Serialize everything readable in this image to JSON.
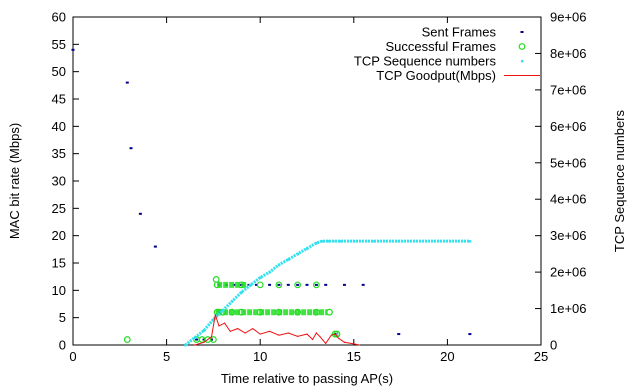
{
  "chart_data": {
    "type": "scatter",
    "xlabel": "Time relative to passing AP(s)",
    "ylabel": "MAC bit rate (Mbps)",
    "y2label": "TCP Sequence numbers",
    "xlim": [
      0,
      25
    ],
    "ylim": [
      0,
      60
    ],
    "y2lim": [
      0,
      9000000
    ],
    "xticks": [
      "0",
      "5",
      "10",
      "15",
      "20",
      "25"
    ],
    "yticks": [
      "0",
      "5",
      "10",
      "15",
      "20",
      "25",
      "30",
      "35",
      "40",
      "45",
      "50",
      "55",
      "60"
    ],
    "y2ticks": [
      "0",
      "1e+06",
      "2e+06",
      "3e+06",
      "4e+06",
      "5e+06",
      "6e+06",
      "7e+06",
      "8e+06",
      "9e+06"
    ],
    "grid": false,
    "legend_position": "top-right",
    "colors": {
      "sent": "#00008b",
      "successful": "#22dd22",
      "seq": "#33e0ee",
      "goodput": "#ee1111"
    },
    "series": [
      {
        "name": "Sent Frames",
        "marker": "dash",
        "x": [
          0,
          2.9,
          3.1,
          3.6,
          4.4,
          6.6,
          7.0,
          7.4,
          7.8,
          7.8,
          8.2,
          8.6,
          9.0,
          9.4,
          9.8,
          10.5,
          11.0,
          11.5,
          12.0,
          12.5,
          13.0,
          13.5,
          14.0,
          14.5,
          15.5,
          17.4,
          21.2
        ],
        "y": [
          54,
          48,
          36,
          24,
          18,
          1,
          1,
          1,
          11,
          6,
          11,
          11,
          11,
          11,
          11,
          11,
          11,
          11,
          11,
          11,
          11,
          11,
          2,
          11,
          11,
          2,
          2
        ]
      },
      {
        "name": "Successful Frames",
        "marker": "circle",
        "x": [
          2.9,
          6.6,
          6.9,
          7.2,
          7.5,
          7.7,
          7.8,
          8.0,
          8.5,
          9.0,
          10.0,
          11.0,
          12.0,
          13.0,
          13.7,
          14.1,
          7.65,
          14.0,
          7.7,
          9.0,
          10.0,
          11.0,
          12.0,
          13.0
        ],
        "y": [
          1,
          1,
          1,
          1,
          1,
          6,
          6,
          6,
          6,
          6,
          6,
          6,
          6,
          6,
          6,
          2,
          12,
          2,
          11,
          11,
          11,
          11,
          11,
          11
        ]
      },
      {
        "name": "TCP Sequence numbers",
        "marker": "dot",
        "x": [
          6.0,
          6.5,
          7.0,
          7.5,
          8.0,
          8.5,
          9.0,
          9.5,
          10.0,
          10.5,
          11.0,
          11.5,
          12.0,
          12.5,
          13.0,
          13.3,
          13.6,
          13.9,
          14.3,
          15.0,
          16.0,
          17.4,
          21.2
        ],
        "y": [
          0,
          200000,
          400000,
          700000,
          950000,
          1200000,
          1450000,
          1650000,
          1850000,
          2000000,
          2200000,
          2350000,
          2500000,
          2650000,
          2800000,
          2850000,
          2850000,
          2850000,
          2850000,
          2850000,
          2850000,
          2850000,
          2850000
        ]
      },
      {
        "name": "TCP Goodput(Mbps)",
        "marker": "line",
        "x": [
          6.5,
          7.0,
          7.4,
          7.6,
          7.8,
          8.1,
          8.4,
          8.8,
          9.2,
          9.6,
          10.0,
          10.5,
          11.0,
          11.5,
          12.0,
          12.5,
          12.8,
          13.0,
          13.2,
          13.5,
          13.8,
          14.0,
          14.2,
          14.5,
          15.0,
          15.3
        ],
        "y": [
          0,
          0.5,
          1.5,
          5.5,
          3.5,
          4.0,
          2.5,
          3.0,
          2.2,
          3.0,
          2.0,
          2.5,
          1.8,
          2.2,
          1.6,
          2.0,
          1.0,
          2.2,
          1.5,
          0.3,
          1.8,
          2.0,
          1.2,
          0.5,
          0.2,
          0
        ]
      }
    ]
  }
}
